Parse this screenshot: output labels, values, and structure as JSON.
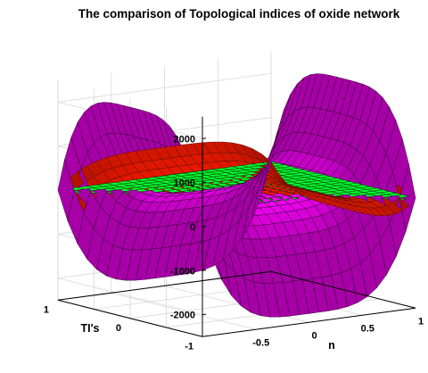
{
  "chart_data": {
    "type": "surface3d",
    "title": "The comparison of Topological indices of oxide network",
    "xlabel": "n",
    "ylabel": "TI's",
    "zlabel": "",
    "xlim": [
      -1,
      1
    ],
    "ylim": [
      -1,
      1
    ],
    "zlim": [
      -2500,
      2500
    ],
    "x_ticks": [
      "-0.5",
      "0",
      "0.5",
      "1"
    ],
    "y_ticks": [
      "-1",
      "0",
      "1"
    ],
    "z_ticks": [
      "2000",
      "1000",
      "0",
      "-1000",
      "-2000"
    ],
    "grid": true,
    "surfaces": [
      {
        "shape": "saddle",
        "amplitude": 2300,
        "color": "#ff00ff",
        "edgecolor": "#330033"
      },
      {
        "shape": "saddle",
        "amplitude": -650,
        "color": "#ff1a00",
        "edgecolor": "#551100"
      },
      {
        "shape": "plane",
        "value": 0,
        "color": "#00ff33",
        "edgecolor": "#003300"
      }
    ]
  }
}
